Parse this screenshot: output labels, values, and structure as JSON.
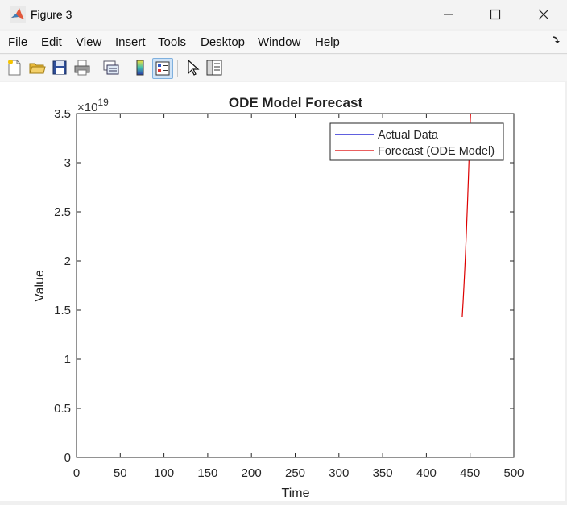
{
  "window": {
    "title": "Figure 3",
    "minimize_label": "—",
    "maximize_label": "☐",
    "close_label": "✕"
  },
  "menu": {
    "items": [
      {
        "label": "File",
        "name": "menu-file"
      },
      {
        "label": "Edit",
        "name": "menu-edit"
      },
      {
        "label": "View",
        "name": "menu-view"
      },
      {
        "label": "Insert",
        "name": "menu-insert"
      },
      {
        "label": "Tools",
        "name": "menu-tools"
      },
      {
        "label": "Desktop",
        "name": "menu-desktop"
      },
      {
        "label": "Window",
        "name": "menu-window"
      },
      {
        "label": "Help",
        "name": "menu-help"
      }
    ],
    "dock_icon": "dock-arrow-icon"
  },
  "toolbar": {
    "icons": [
      "new-figure-icon",
      "open-file-icon",
      "save-icon",
      "print-icon",
      "link-plot-icon",
      "colorbar-icon",
      "legend-icon",
      "pointer-icon",
      "property-inspector-icon"
    ]
  },
  "colors": {
    "actual": "#0000cc",
    "forecast": "#dd0000"
  },
  "chart_data": {
    "type": "line",
    "title": "ODE Model Forecast",
    "xlabel": "Time",
    "ylabel": "Value",
    "exponent_label": "×10",
    "exponent_power": "19",
    "xlim": [
      0,
      500
    ],
    "ylim": [
      0,
      3.5
    ],
    "y_scale_factor": 1e+19,
    "x_ticks": [
      0,
      50,
      100,
      150,
      200,
      250,
      300,
      350,
      400,
      450,
      500
    ],
    "y_ticks": [
      0,
      0.5,
      1,
      1.5,
      2,
      2.5,
      3,
      3.5
    ],
    "x_tick_labels": [
      "0",
      "50",
      "100",
      "150",
      "200",
      "250",
      "300",
      "350",
      "400",
      "450",
      "500"
    ],
    "y_tick_labels": [
      "0",
      "0.5",
      "1",
      "1.5",
      "2",
      "2.5",
      "3",
      "3.5"
    ],
    "legend_position": "top-right",
    "grid": false,
    "series": [
      {
        "name": "Actual Data",
        "color": "#0000cc",
        "x": [],
        "y": []
      },
      {
        "name": "Forecast (ODE Model)",
        "color": "#dd0000",
        "x": [
          441,
          442,
          443,
          444,
          445,
          446,
          447,
          448,
          449,
          450,
          451
        ],
        "y": [
          1.43,
          1.58,
          1.75,
          1.93,
          2.13,
          2.35,
          2.58,
          2.83,
          3.1,
          3.38,
          3.6
        ]
      }
    ]
  }
}
